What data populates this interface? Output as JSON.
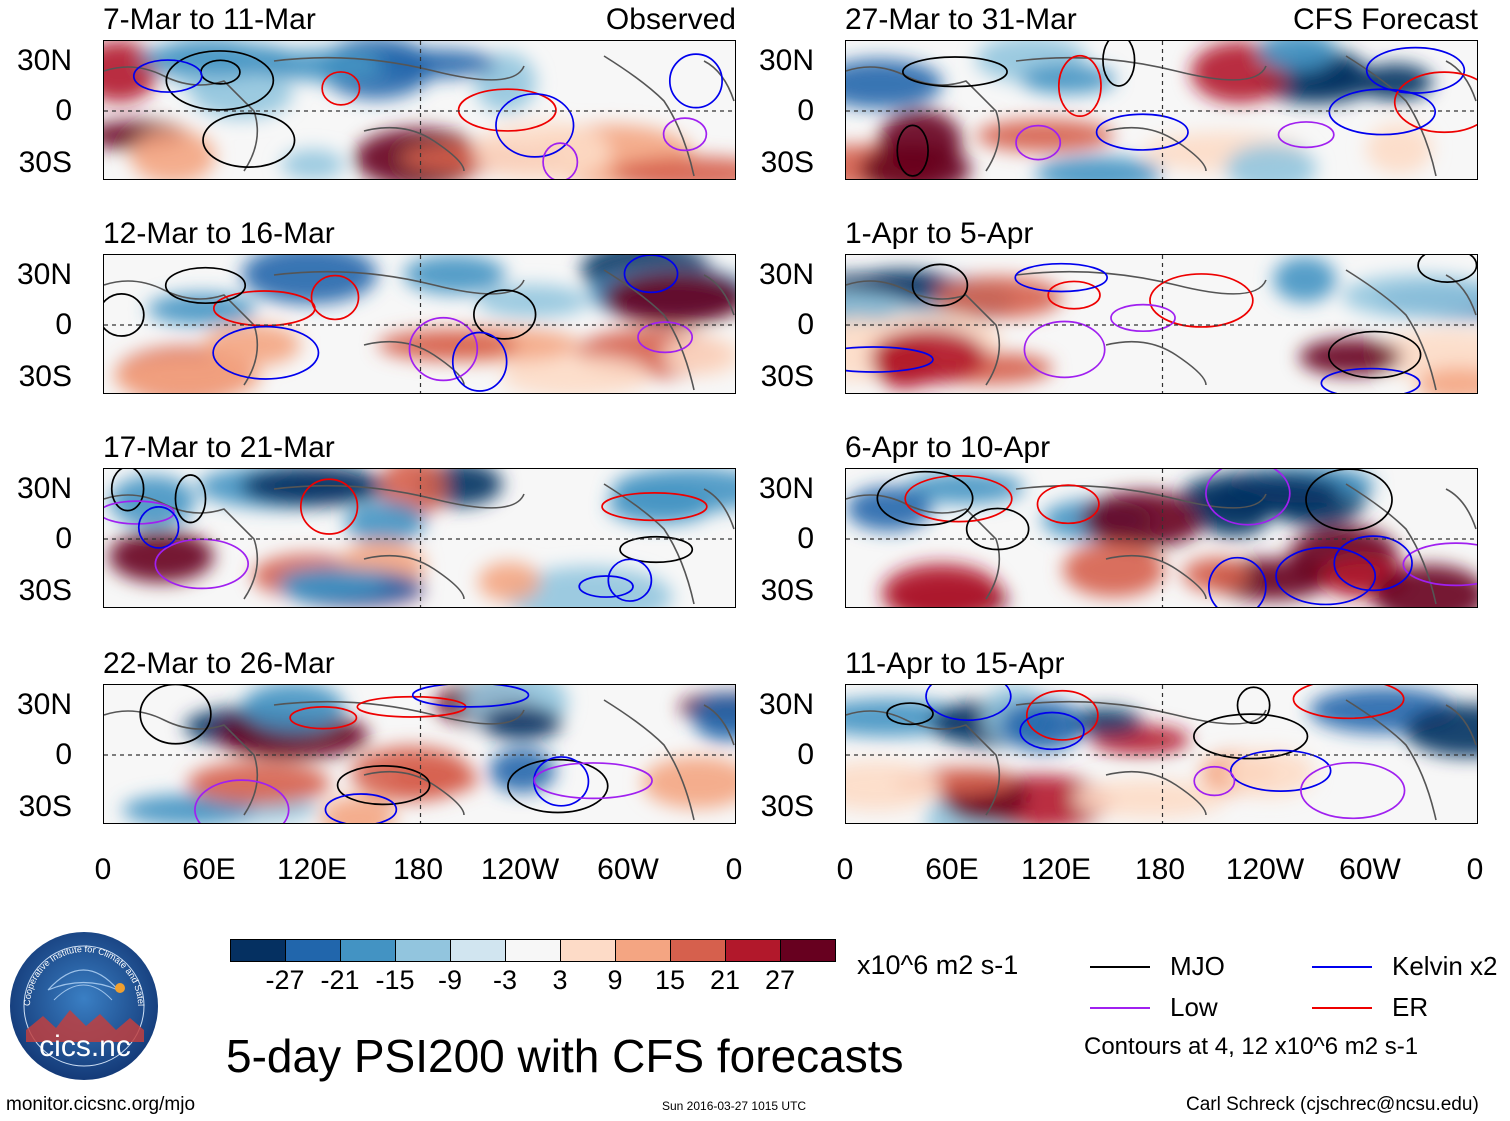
{
  "panels": [
    {
      "title": "7-Mar to 11-Mar",
      "label": "Observed"
    },
    {
      "title": "27-Mar to 31-Mar",
      "label": "CFS Forecast"
    },
    {
      "title": "12-Mar to 16-Mar",
      "label": ""
    },
    {
      "title": "1-Apr to 5-Apr",
      "label": ""
    },
    {
      "title": "17-Mar to 21-Mar",
      "label": ""
    },
    {
      "title": "6-Apr to 10-Apr",
      "label": ""
    },
    {
      "title": "22-Mar to 26-Mar",
      "label": ""
    },
    {
      "title": "11-Apr to 15-Apr",
      "label": ""
    }
  ],
  "y_ticks": [
    "30N",
    "0",
    "30S"
  ],
  "x_ticks": [
    "0",
    "60E",
    "120E",
    "180",
    "120W",
    "60W",
    "0"
  ],
  "colorbar": {
    "colors": [
      "#053061",
      "#2166ac",
      "#4393c3",
      "#92c5de",
      "#d1e5f0",
      "#f7f7f7",
      "#fddbc7",
      "#f4a582",
      "#d6604d",
      "#b2182b",
      "#67001f"
    ],
    "labels": [
      "-27",
      "-21",
      "-15",
      "-9",
      "-3",
      "3",
      "9",
      "15",
      "21",
      "27"
    ],
    "units": "x10^6 m2 s-1"
  },
  "legend": {
    "items": [
      {
        "label": "MJO",
        "color": "#000000"
      },
      {
        "label": "Kelvin x2",
        "color": "#0000ee"
      },
      {
        "label": "Low",
        "color": "#a020f0"
      },
      {
        "label": "ER",
        "color": "#ee0000"
      }
    ],
    "contours_note": "Contours at 4, 12 x10^6 m2 s-1"
  },
  "logo_text": "cics.nc",
  "logo_ring_text": "Cooperative Institute for Climate and Satellites",
  "main_title": "5-day PSI200 with CFS forecasts",
  "footer": {
    "url": "monitor.cicsnc.org/mjo",
    "timestamp": "Sun 2016-03-27 1015 UTC",
    "author": "Carl Schreck (cjschrec@ncsu.edu)"
  }
}
